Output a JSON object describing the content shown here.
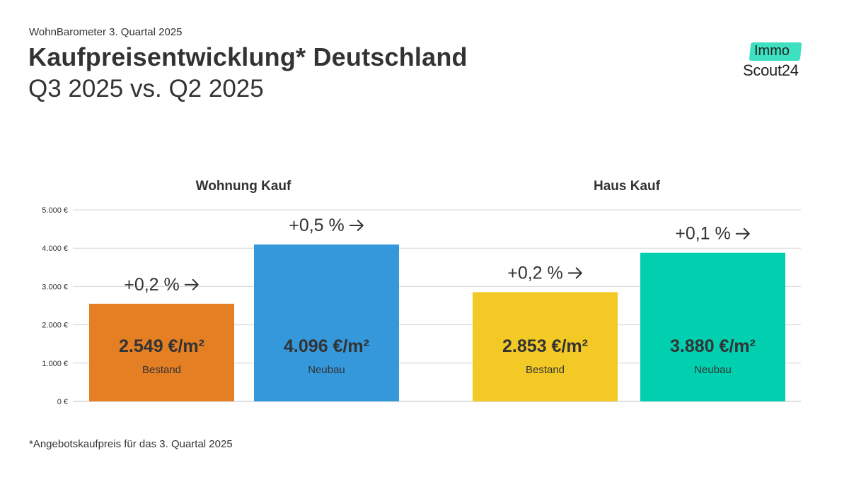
{
  "header": {
    "kicker": "WohnBarometer 3. Quartal 2025",
    "title": "Kaufpreisentwicklung* Deutschland",
    "subtitle": "Q3 2025 vs. Q2 2025"
  },
  "logo": {
    "immo": "Immo",
    "scout": "Scout24"
  },
  "footnote": "*Angebotskaufpreis für das 3. Quartal 2025",
  "chart_data": {
    "type": "bar",
    "y_ticks": [
      "0 €",
      "1.000 €",
      "2.000 €",
      "3.000 €",
      "4.000 €",
      "5.000 €"
    ],
    "ylim": [
      0,
      5000
    ],
    "grid": true,
    "groups": [
      {
        "name": "Wohnung Kauf",
        "bars": [
          {
            "category": "Bestand",
            "value": 2549,
            "value_label": "2.549 €/m²",
            "change_label": "+0,2 %",
            "color": "#e47f24"
          },
          {
            "category": "Neubau",
            "value": 4096,
            "value_label": "4.096 €/m²",
            "change_label": "+0,5 %",
            "color": "#3498db"
          }
        ]
      },
      {
        "name": "Haus Kauf",
        "bars": [
          {
            "category": "Bestand",
            "value": 2853,
            "value_label": "2.853 €/m²",
            "change_label": "+0,2 %",
            "color": "#f2c925"
          },
          {
            "category": "Neubau",
            "value": 3880,
            "value_label": "3.880 €/m²",
            "change_label": "+0,1 %",
            "color": "#00d0b0"
          }
        ]
      }
    ]
  },
  "colors": {
    "text": "#333333",
    "grid": "#d6d6d6",
    "logo_accent": "#3de0c0"
  }
}
